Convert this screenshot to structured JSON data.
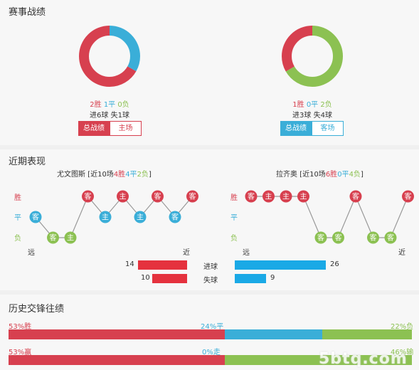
{
  "sections": {
    "match_record": "赛事战绩",
    "recent_form": "近期表现",
    "h2h": "历史交锋往绩"
  },
  "colors": {
    "win": "#d7404f",
    "draw": "#3aaed8",
    "loss": "#8cc152",
    "goals_for": "#e5323e",
    "goals_against": "#1aa9e6",
    "line": "#999999"
  },
  "home_record": {
    "wins": "2胜",
    "draws": "1平",
    "losses": "0负",
    "goals": "进6球 失1球",
    "tab_active": "总战绩",
    "tab_other": "主场",
    "share": {
      "win": 0.667,
      "draw": 0.333,
      "loss": 0
    }
  },
  "away_record": {
    "wins": "1胜",
    "draws": "0平",
    "losses": "2负",
    "goals": "进3球 失4球",
    "tab_active": "总战绩",
    "tab_other": "客场",
    "share": {
      "win": 0.333,
      "draw": 0,
      "loss": 0.667
    }
  },
  "recent": {
    "y_labels": {
      "win": "胜",
      "draw": "平",
      "loss": "负"
    },
    "far": "远",
    "near": "近",
    "home": {
      "team": "尤文图斯",
      "summary_prefix": " [近10场",
      "w": "4胜",
      "d": "4平",
      "l": "2负",
      "summary_suffix": "]",
      "games": [
        {
          "r": "d",
          "v": "客"
        },
        {
          "r": "l",
          "v": "客"
        },
        {
          "r": "l",
          "v": "主"
        },
        {
          "r": "w",
          "v": "客"
        },
        {
          "r": "d",
          "v": "主"
        },
        {
          "r": "w",
          "v": "主"
        },
        {
          "r": "d",
          "v": "主"
        },
        {
          "r": "w",
          "v": "客"
        },
        {
          "r": "d",
          "v": "客"
        },
        {
          "r": "w",
          "v": "客"
        }
      ]
    },
    "away": {
      "team": "拉齐奥",
      "summary_prefix": " [近10场",
      "w": "6胜",
      "d": "0平",
      "l": "4负",
      "summary_suffix": "]",
      "games": [
        {
          "r": "w",
          "v": "客"
        },
        {
          "r": "w",
          "v": "主"
        },
        {
          "r": "w",
          "v": "主"
        },
        {
          "r": "w",
          "v": "主"
        },
        {
          "r": "l",
          "v": "客"
        },
        {
          "r": "l",
          "v": "客"
        },
        {
          "r": "w",
          "v": "客"
        },
        {
          "r": "l",
          "v": "客"
        },
        {
          "r": "l",
          "v": "客"
        },
        {
          "r": "w",
          "v": "客"
        }
      ]
    },
    "goals": {
      "for_label": "进球",
      "against_label": "失球",
      "home_for": 14,
      "home_against": 10,
      "away_for": 26,
      "away_against": 9,
      "max": 26
    }
  },
  "history": {
    "row1": {
      "left": "53%胜",
      "mid": "24%平",
      "right": "22%负",
      "a": 53,
      "b": 24,
      "c": 22
    },
    "row2": {
      "left": "53%赢",
      "mid": "0%走",
      "right": "46%输",
      "a": 53,
      "b": 0,
      "c": 46
    }
  },
  "watermark": "5btq.com"
}
